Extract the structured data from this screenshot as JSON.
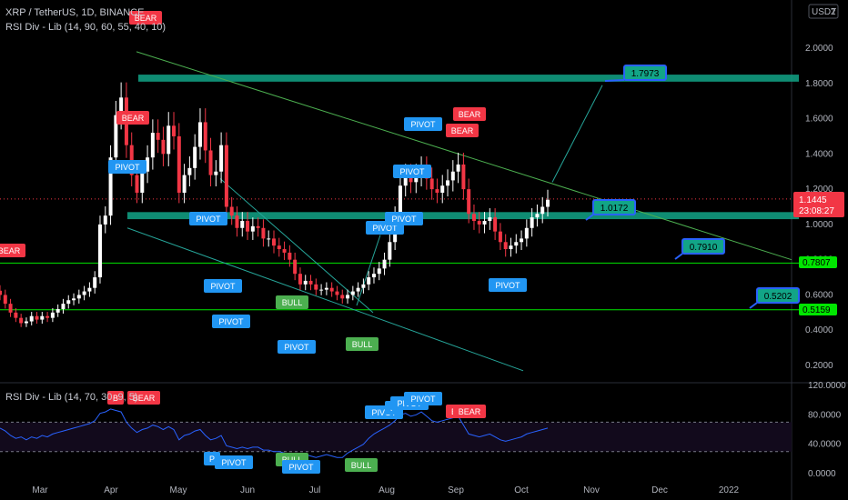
{
  "header": {
    "symbol_line": "XRP / TetherUS, 1D, BINANCE",
    "indicator_line": "RSI Div - Lib (14, 90, 60, 55, 40, 10)",
    "rsi_line": "RSI Div - Lib (14, 70, 30, 9, 5)"
  },
  "axis": {
    "currency_badge": "USDT",
    "top_right_label": "2",
    "months": [
      "Mar",
      "Apr",
      "May",
      "Jun",
      "Jul",
      "Aug",
      "Sep",
      "Oct",
      "Nov",
      "Dec",
      "2022"
    ]
  },
  "price_tags": {
    "last": "1.1445",
    "countdown": "23:08:27",
    "support_1": "0.7807",
    "support_2": "0.5159"
  },
  "colors": {
    "background": "#000000",
    "up_candle": "#ffffff",
    "down_candle": "#f23645",
    "zone": "#12a587",
    "trendline": "#4caf50",
    "wedge": "#26a69a",
    "pivot": "#2196f3",
    "bear": "#f23645",
    "bull": "#4caf50",
    "rsi_line": "#2962ff",
    "support_line": "#00e600"
  },
  "chart_data": [
    {
      "type": "candlestick",
      "title": "XRP / TetherUS, 1D, BINANCE",
      "y_ticks": [
        0.2,
        0.4,
        0.6,
        0.8,
        1.0,
        1.2,
        1.4,
        1.6,
        1.8,
        2.0
      ],
      "ylim": [
        0.12,
        2.1
      ],
      "x_ticks": [
        "Mar",
        "Apr",
        "May",
        "Jun",
        "Jul",
        "Aug",
        "Sep",
        "Oct",
        "Nov",
        "Dec",
        "2022"
      ],
      "close_series": [
        0.6,
        0.55,
        0.5,
        0.47,
        0.44,
        0.45,
        0.48,
        0.46,
        0.48,
        0.47,
        0.5,
        0.52,
        0.55,
        0.57,
        0.58,
        0.6,
        0.62,
        0.64,
        0.7,
        1.0,
        1.05,
        1.38,
        1.62,
        1.72,
        1.45,
        1.28,
        1.18,
        1.3,
        1.38,
        1.52,
        1.48,
        1.4,
        1.56,
        1.5,
        1.18,
        1.28,
        1.32,
        1.44,
        1.58,
        1.42,
        1.28,
        1.3,
        1.45,
        1.1,
        1.05,
        0.98,
        1.02,
        0.96,
        0.99,
        0.98,
        0.92,
        0.92,
        0.88,
        0.86,
        0.84,
        0.8,
        0.72,
        0.66,
        0.68,
        0.66,
        0.63,
        0.63,
        0.64,
        0.62,
        0.6,
        0.58,
        0.6,
        0.62,
        0.64,
        0.66,
        0.7,
        0.72,
        0.75,
        0.8,
        0.9,
        1.05,
        1.22,
        1.28,
        1.24,
        1.28,
        1.32,
        1.26,
        1.2,
        1.18,
        1.22,
        1.25,
        1.3,
        1.34,
        1.2,
        1.06,
        1.02,
        1.0,
        1.02,
        1.04,
        0.96,
        0.9,
        0.86,
        0.88,
        0.9,
        0.92,
        0.98,
        1.04,
        1.06,
        1.1,
        1.14
      ],
      "zones": [
        {
          "name": "resistance zone",
          "from": 1.81,
          "to": 1.85
        },
        {
          "name": "support zone",
          "from": 1.03,
          "to": 1.07
        }
      ],
      "horizontal_levels": [
        0.7807,
        0.5159
      ],
      "price_labels": [
        {
          "text": "1.7973",
          "price": 1.7973
        },
        {
          "text": "1.0172",
          "price": 1.0172
        },
        {
          "text": "0.7910",
          "price": 0.791
        },
        {
          "text": "0.5202",
          "price": 0.5202
        }
      ],
      "markers": [
        {
          "text": "BEAR",
          "kind": "bear",
          "price": 2.05
        },
        {
          "text": "BEAR",
          "kind": "bear",
          "price": 1.56
        },
        {
          "text": "BEAR",
          "kind": "bear",
          "price": 0.82
        },
        {
          "text": "PIVOT",
          "kind": "pivot",
          "price": 1.28
        },
        {
          "text": "PIVOT",
          "kind": "pivot",
          "price": 1.02
        },
        {
          "text": "PIVOT",
          "kind": "pivot",
          "price": 0.66
        },
        {
          "text": "PIVOT",
          "kind": "pivot",
          "price": 0.43
        },
        {
          "text": "PIVOT",
          "kind": "pivot",
          "price": 0.47
        },
        {
          "text": "BULL",
          "kind": "bull",
          "price": 0.58
        },
        {
          "text": "BULL",
          "kind": "bull",
          "price": 0.35
        },
        {
          "text": "PIVOT",
          "kind": "pivot",
          "price": 0.95
        },
        {
          "text": "PIVOT",
          "kind": "pivot",
          "price": 1.02
        },
        {
          "text": "PIVOT",
          "kind": "pivot",
          "price": 1.27
        },
        {
          "text": "PIVOT",
          "kind": "pivot",
          "price": 1.55
        },
        {
          "text": "BEAR",
          "kind": "bear",
          "price": 1.58
        },
        {
          "text": "BEAR",
          "kind": "bear",
          "price": 1.47
        },
        {
          "text": "PIVOT",
          "kind": "pivot",
          "price": 0.64
        }
      ]
    },
    {
      "type": "line",
      "title": "RSI Div - Lib (14, 70, 30, 9, 5)",
      "y_ticks": [
        0,
        40,
        80,
        120
      ],
      "ylim": [
        0,
        120
      ],
      "bands": [
        70,
        30
      ],
      "values": [
        62,
        58,
        52,
        48,
        50,
        46,
        50,
        48,
        52,
        50,
        54,
        56,
        58,
        60,
        62,
        64,
        66,
        68,
        72,
        82,
        84,
        88,
        86,
        84,
        70,
        62,
        56,
        60,
        62,
        66,
        64,
        60,
        64,
        60,
        46,
        52,
        54,
        58,
        60,
        52,
        46,
        48,
        52,
        38,
        36,
        34,
        36,
        34,
        36,
        36,
        32,
        32,
        30,
        30,
        28,
        26,
        24,
        22,
        26,
        24,
        22,
        24,
        26,
        24,
        22,
        22,
        28,
        32,
        36,
        40,
        48,
        54,
        58,
        62,
        66,
        72,
        80,
        82,
        78,
        80,
        84,
        78,
        72,
        70,
        72,
        74,
        76,
        78,
        66,
        54,
        52,
        50,
        52,
        54,
        50,
        46,
        44,
        46,
        48,
        50,
        54,
        56,
        58,
        60,
        62
      ],
      "markers": [
        {
          "text": "B",
          "kind": "bear",
          "value": 86
        },
        {
          "text": "BEAR",
          "kind": "bear",
          "value": 88
        },
        {
          "text": "P",
          "kind": "pivot",
          "value": 20
        },
        {
          "text": "PIVOT",
          "kind": "pivot",
          "value": 10
        },
        {
          "text": "BULL",
          "kind": "bull",
          "value": 16
        },
        {
          "text": "PIVOT",
          "kind": "pivot",
          "value": 2
        },
        {
          "text": "BULL",
          "kind": "bull",
          "value": 6
        },
        {
          "text": "PIVOT",
          "kind": "pivot",
          "value": 68
        },
        {
          "text": "P",
          "kind": "pivot",
          "value": 76
        },
        {
          "text": "PIVOT",
          "kind": "pivot",
          "value": 84
        },
        {
          "text": "PIVOT",
          "kind": "pivot",
          "value": 88
        },
        {
          "text": "B",
          "kind": "bear",
          "value": 64
        },
        {
          "text": "BEAR",
          "kind": "bear",
          "value": 66
        }
      ]
    }
  ]
}
